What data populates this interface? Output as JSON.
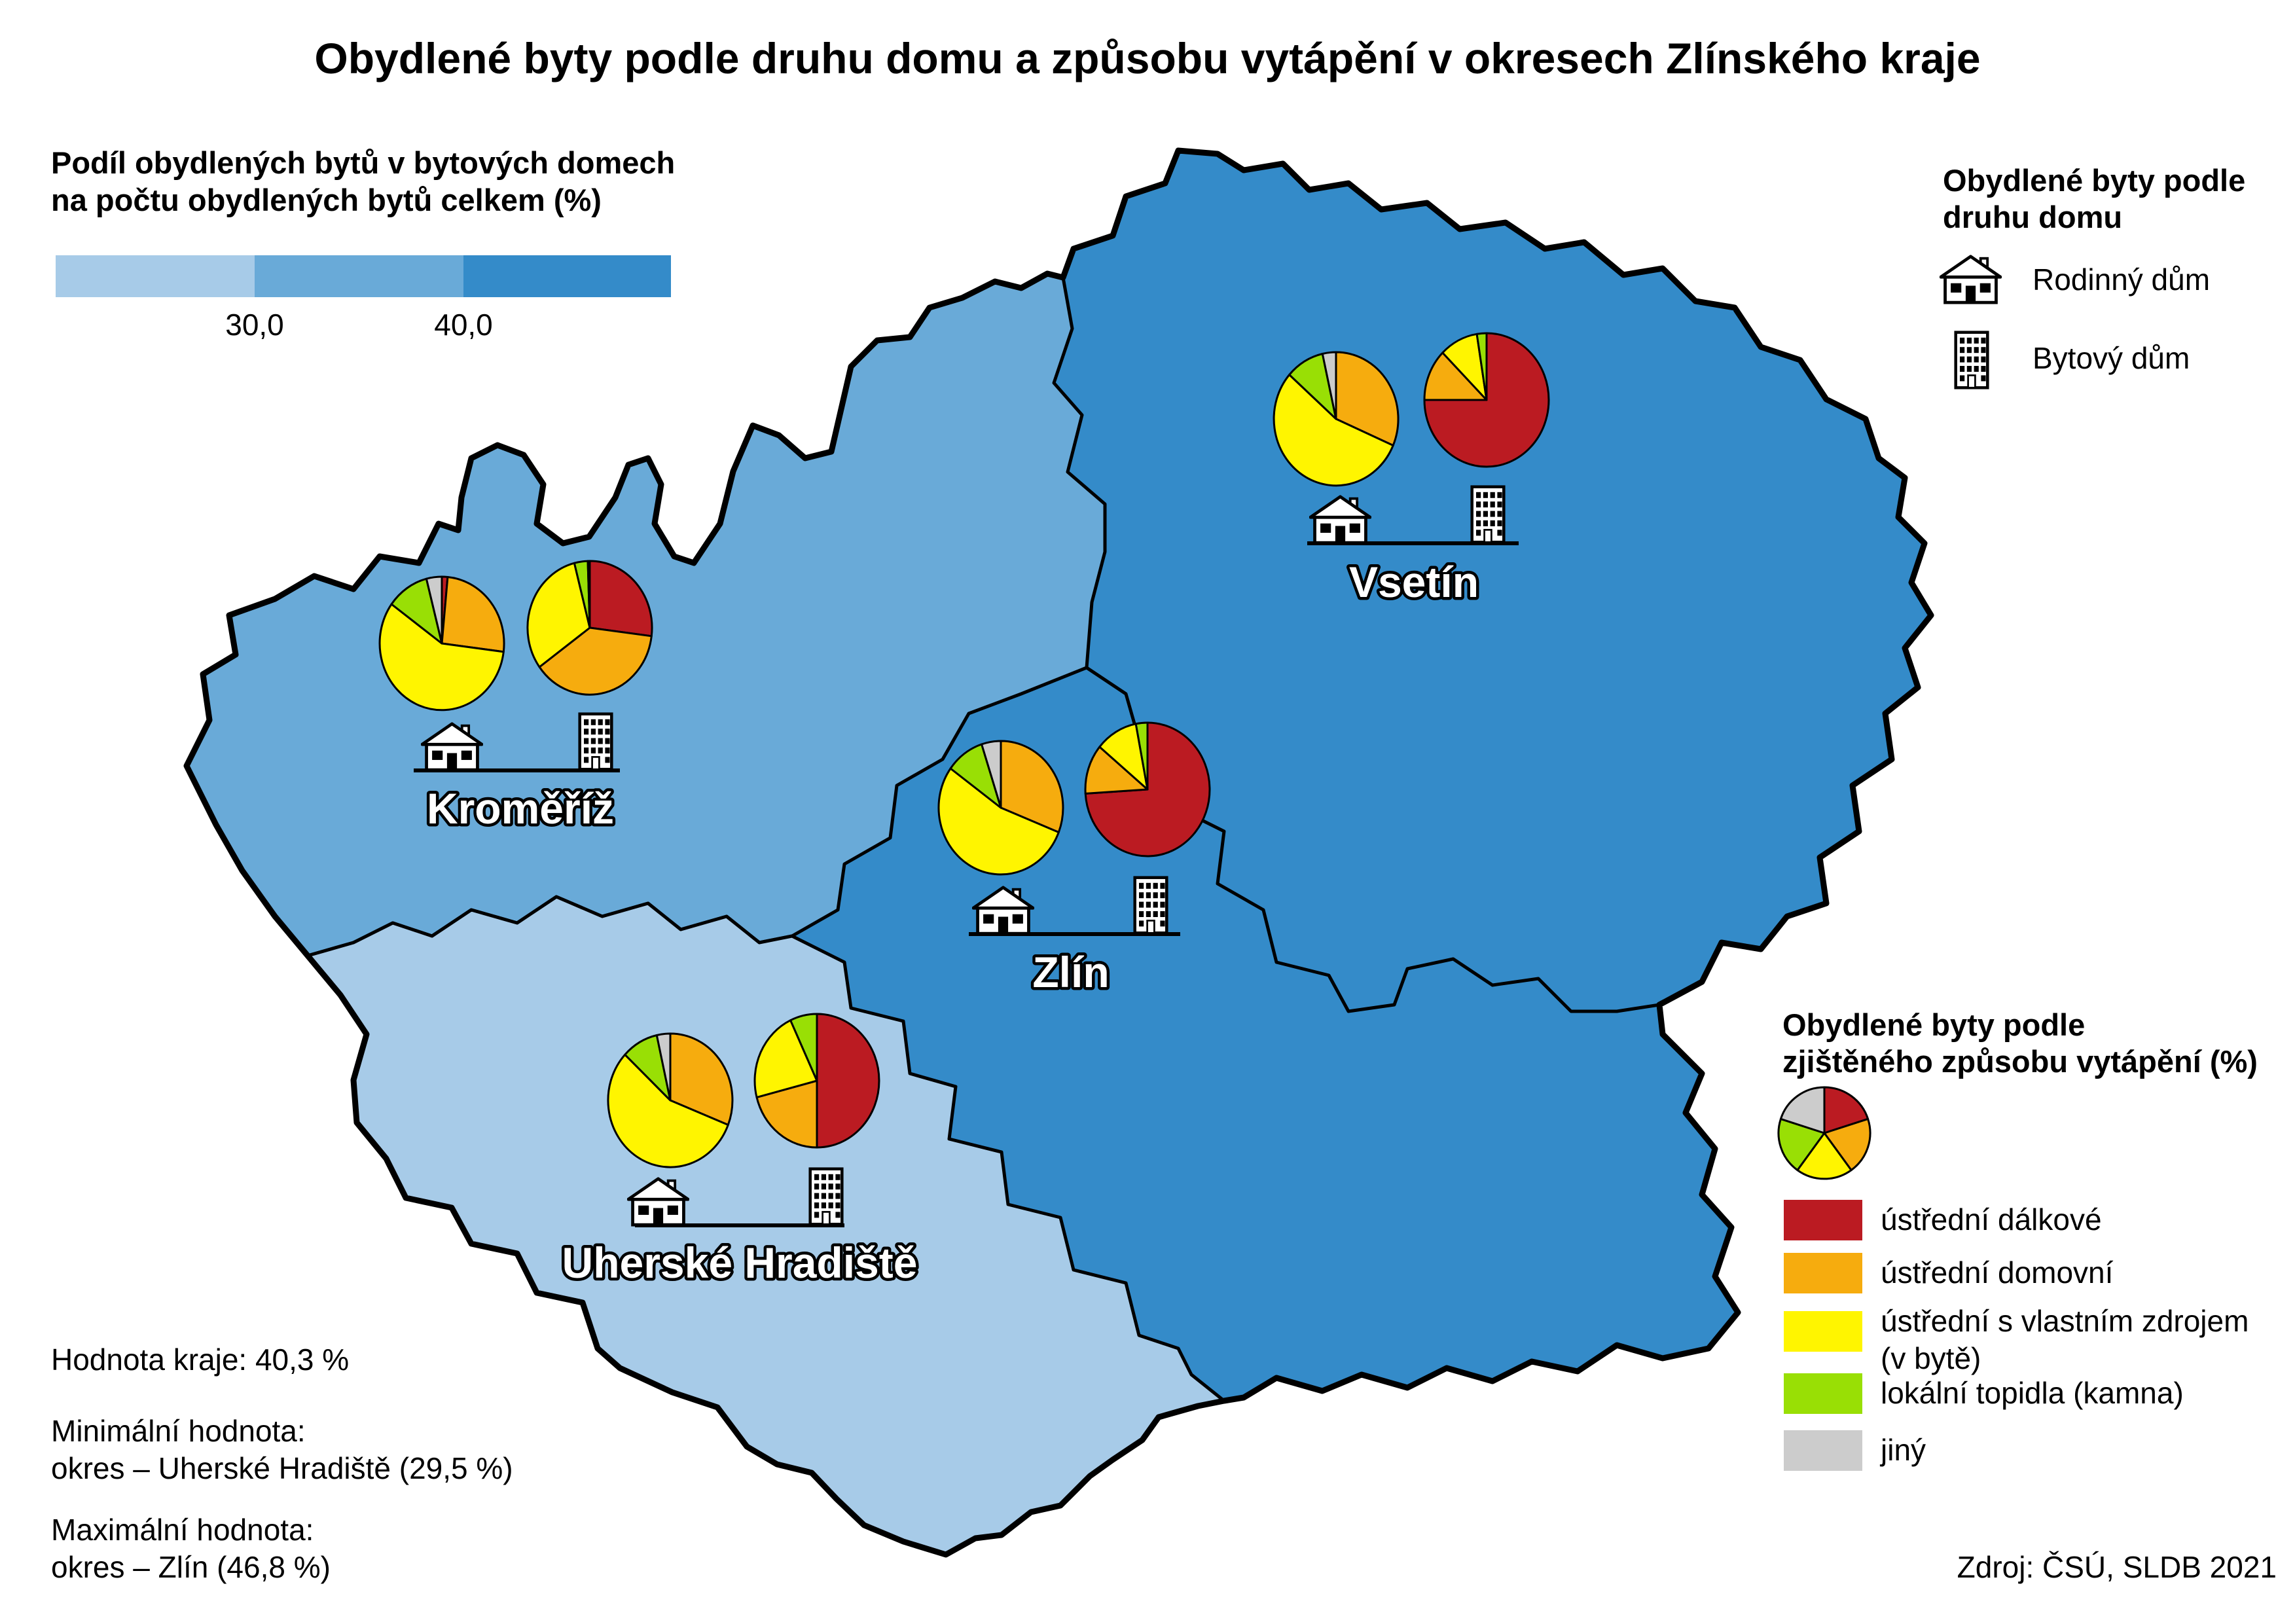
{
  "title": "Obydlené byty podle druhu domu a způsobu vytápění v okresech Zlínského kraje",
  "palette": {
    "region_light": "#A7CBE8",
    "region_medium": "#69AAD8",
    "region_dark": "#348BC9",
    "outline": "#000000"
  },
  "share_legend": {
    "title_line1": "Podíl obydlených bytů v bytových domech",
    "title_line2": "na počtu obydlených bytů celkem (%)",
    "ticks": [
      "30,0",
      "40,0"
    ]
  },
  "house_type_legend": {
    "title_line1": "Obydlené byty podle",
    "title_line2": "druhu domu",
    "family_label": "Rodinný dům",
    "apartment_label": "Bytový dům"
  },
  "heating_legend": {
    "title_line1": "Obydlené byty podle",
    "title_line2": "zjištěného způsobu vytápění (%)",
    "colors": [
      "#BB1B22",
      "#F6AC0E",
      "#FFF500",
      "#99DF05",
      "#CCCCCC"
    ],
    "sample_pie": [
      20,
      20,
      20,
      20,
      20
    ],
    "items": [
      {
        "label": "ústřední dálkové"
      },
      {
        "label": "ústřední domovní"
      },
      {
        "label": "ústřední s vlastním zdrojem",
        "label2": "(v bytě)"
      },
      {
        "label": "lokální topidla (kamna)"
      },
      {
        "label": "jiný"
      }
    ]
  },
  "pie_slice_order": [
    "ústřední dálkové",
    "ústřední domovní",
    "ústřední s vlastním zdrojem (v bytě)",
    "lokální topidla (kamna)",
    "jiný"
  ],
  "pie_unit": "%",
  "districts": [
    {
      "name": "Kroměříž",
      "pies": {
        "family": [
          1.5,
          25.5,
          58,
          11,
          4
        ],
        "apartment": [
          27,
          38,
          31,
          3.5,
          0.5
        ]
      }
    },
    {
      "name": "Zlín",
      "pies": {
        "family": [
          0,
          31,
          54,
          10,
          5
        ],
        "apartment": [
          74,
          12,
          11,
          3,
          0
        ]
      }
    },
    {
      "name": "Vsetín",
      "pies": {
        "family": [
          0,
          31.5,
          55,
          10,
          3.5
        ],
        "apartment": [
          75,
          12.5,
          10,
          2.5,
          0
        ]
      }
    },
    {
      "name": "Uherské Hradiště",
      "pies": {
        "family": [
          0,
          31,
          56,
          9.5,
          3.5
        ],
        "apartment": [
          50,
          21,
          22,
          7,
          0
        ]
      }
    }
  ],
  "stats": {
    "region": "Hodnota kraje: 40,3 %",
    "min_label": "Minimální hodnota:",
    "min_value": "okres – Uherské Hradiště (29,5 %)",
    "max_label": "Maximální hodnota:",
    "max_value": "okres – Zlín (46,8 %)"
  },
  "source": "Zdroj: ČSÚ, SLDB 2021"
}
